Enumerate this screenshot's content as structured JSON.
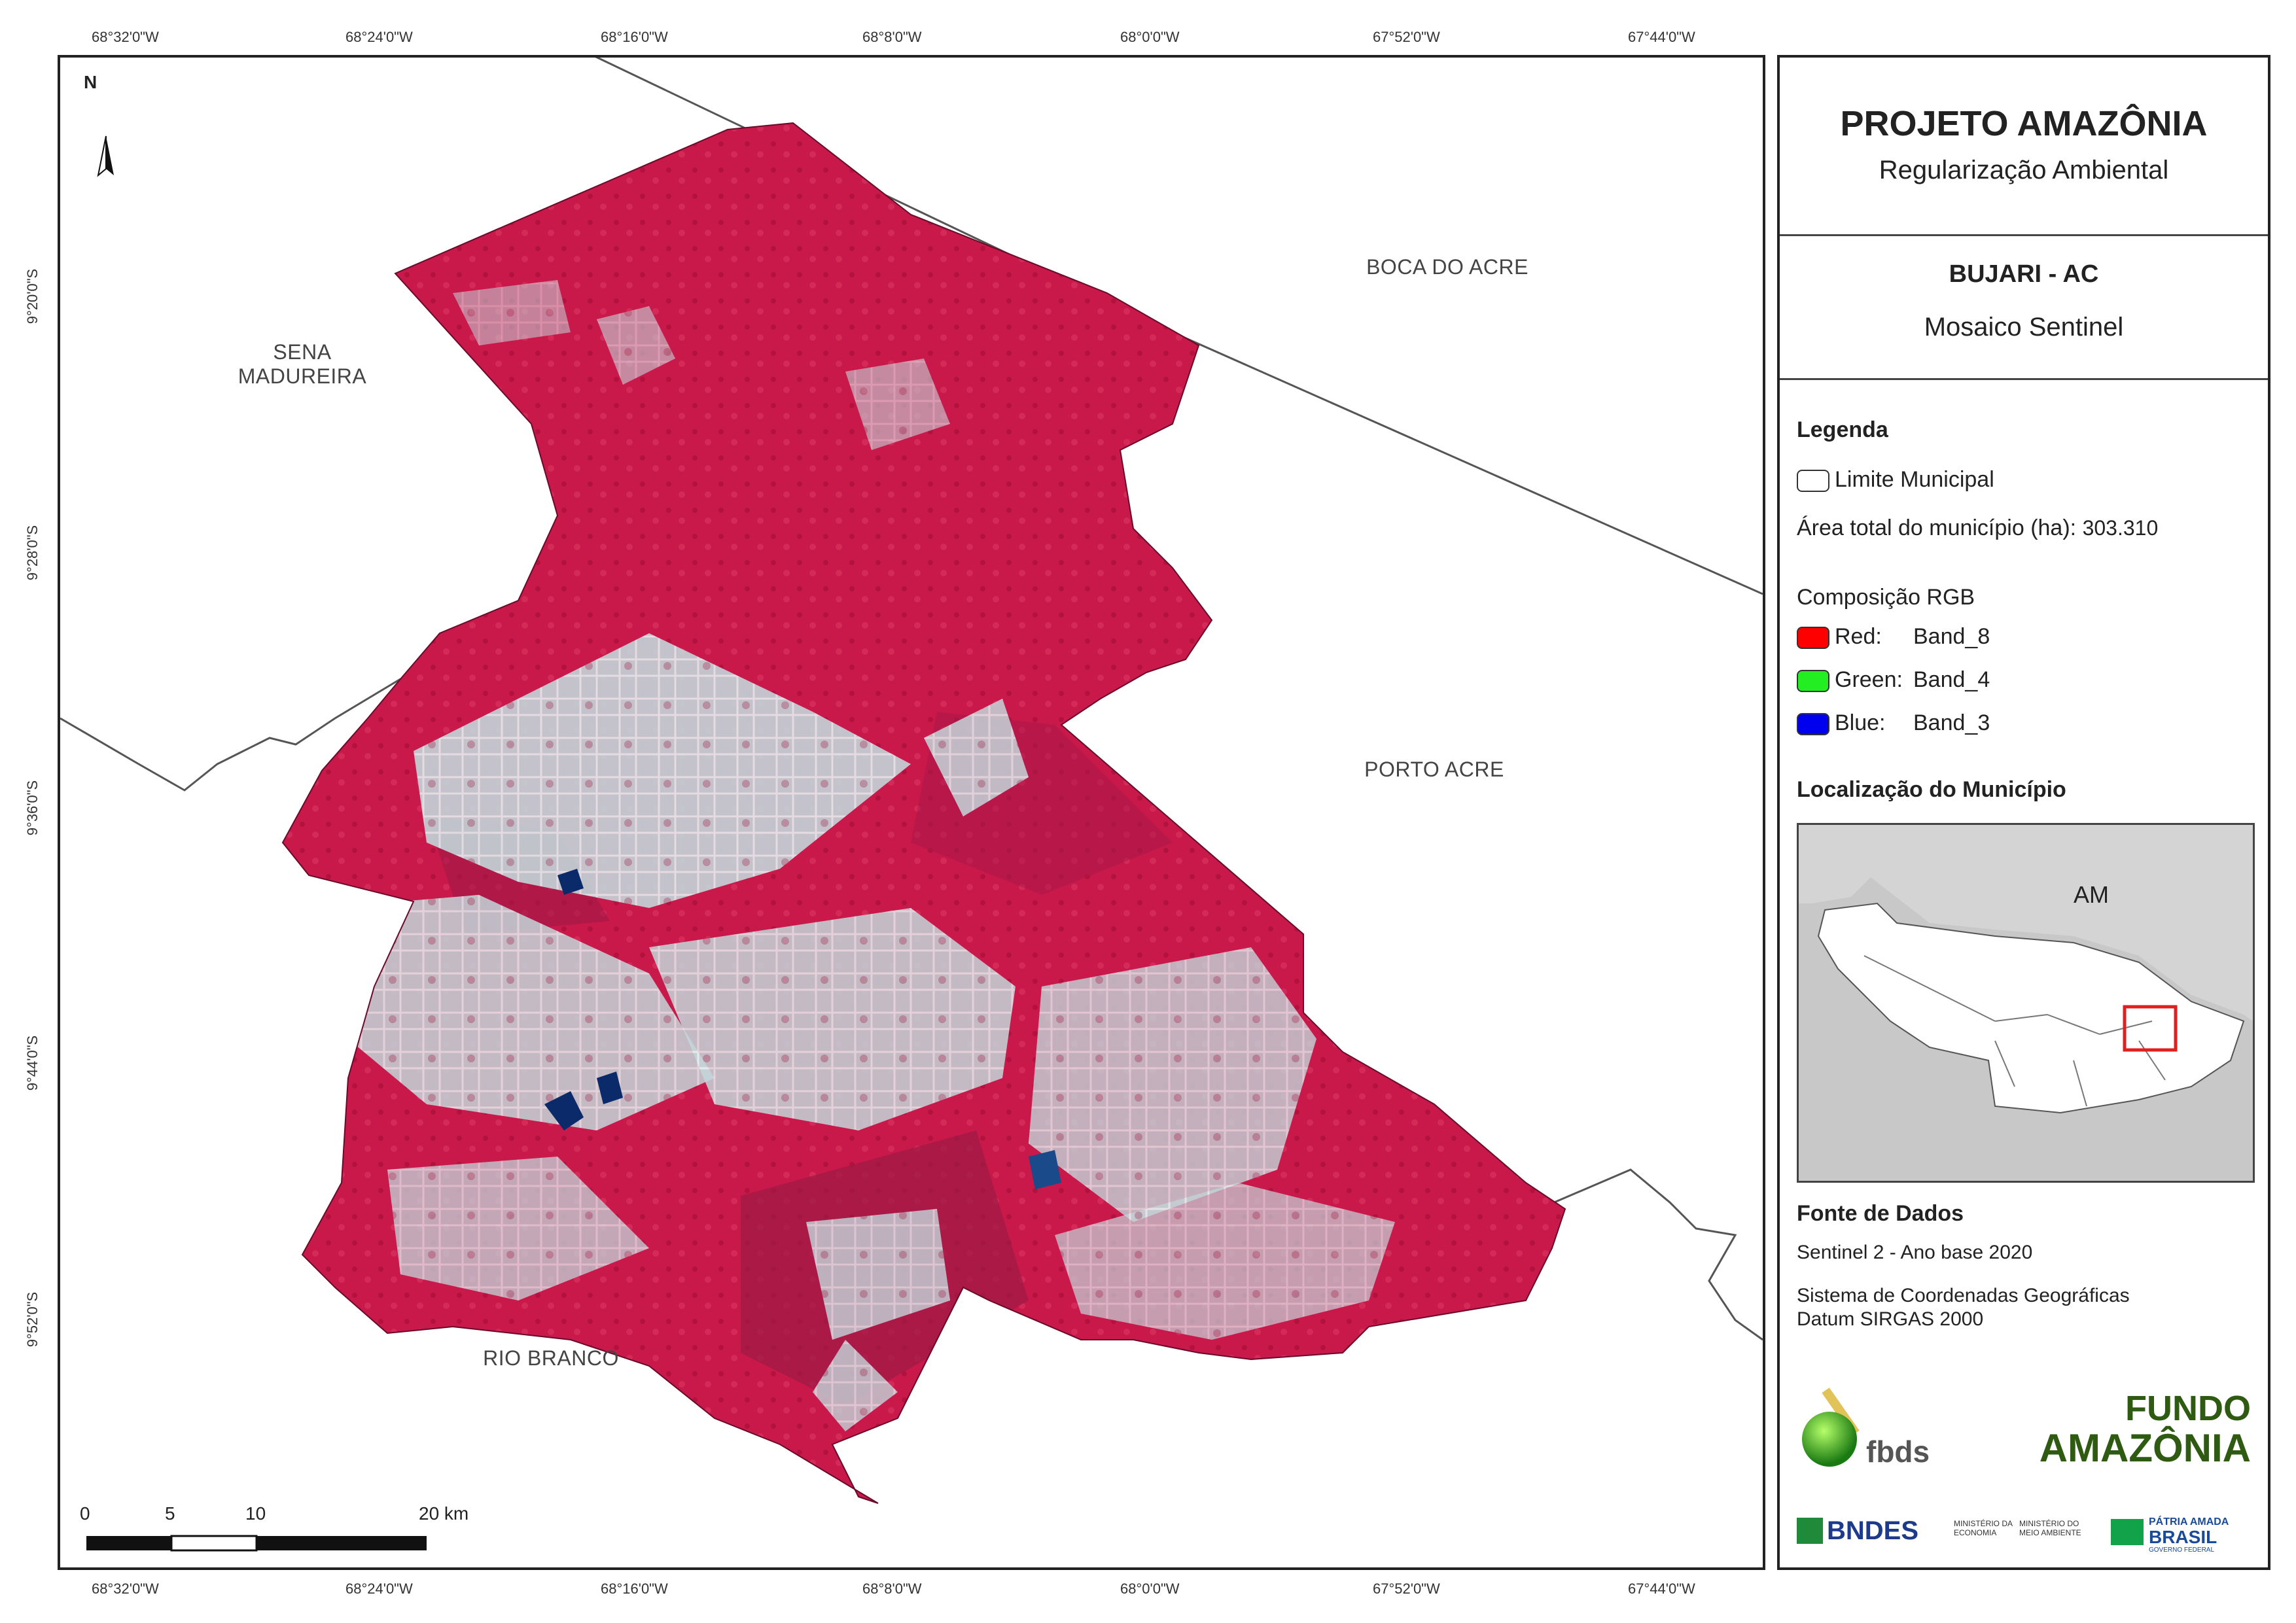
{
  "graticule": {
    "lon_labels": [
      "68°32'0\"W",
      "68°24'0\"W",
      "68°16'0\"W",
      "68°8'0\"W",
      "68°0'0\"W",
      "67°52'0\"W",
      "67°44'0\"W"
    ],
    "lat_labels": [
      "9°20'0\"S",
      "9°28'0\"S",
      "9°36'0\"S",
      "9°44'0\"S",
      "9°52'0\"S"
    ]
  },
  "map": {
    "north_label": "N",
    "places": {
      "sena_madureira": "SENA MADUREIRA",
      "boca_do_acre": "BOCA DO ACRE",
      "porto_acre": "PORTO ACRE",
      "rio_branco": "RIO BRANCO"
    },
    "scale_bar": {
      "ticks": [
        "0",
        "5",
        "10",
        "20 km"
      ]
    },
    "colors": {
      "vegetation": "#c8194a",
      "cleared": "#c9d8dc",
      "water": "#0a2a6a"
    }
  },
  "panel": {
    "title": "PROJETO AMAZÔNIA",
    "subtitle": "Regularização Ambiental",
    "municipality": "BUJARI - AC",
    "mosaic": "Mosaico Sentinel",
    "legend": {
      "heading": "Legenda",
      "boundary_label": "Limite Municipal",
      "area_label": "Área total do município (ha):",
      "area_value": "303.310",
      "rgb_heading": "Composição RGB",
      "bands": [
        {
          "channel": "Red:",
          "band": "Band_8",
          "color": "#ff0000"
        },
        {
          "channel": "Green:",
          "band": "Band_4",
          "color": "#22ee22"
        },
        {
          "channel": "Blue:",
          "band": "Band_3",
          "color": "#0000ee"
        }
      ]
    },
    "location": {
      "heading": "Localização do Município",
      "state_label": "AM"
    },
    "sources": {
      "heading": "Fonte de Dados",
      "line1": "Sentinel 2 - Ano base 2020",
      "line2": "Sistema de Coordenadas Geográficas",
      "line3": "Datum SIRGAS 2000"
    },
    "logos": {
      "fbds": "fbds",
      "fundo_line1": "FUNDO",
      "fundo_line2": "AMAZÔNIA",
      "bndes": "BNDES",
      "min_economia": "MINISTÉRIO DA ECONOMIA",
      "min_meio": "MINISTÉRIO DO MEIO AMBIENTE",
      "patria": "PÁTRIA AMADA",
      "brasil": "BRASIL",
      "gov": "GOVERNO FEDERAL"
    }
  }
}
